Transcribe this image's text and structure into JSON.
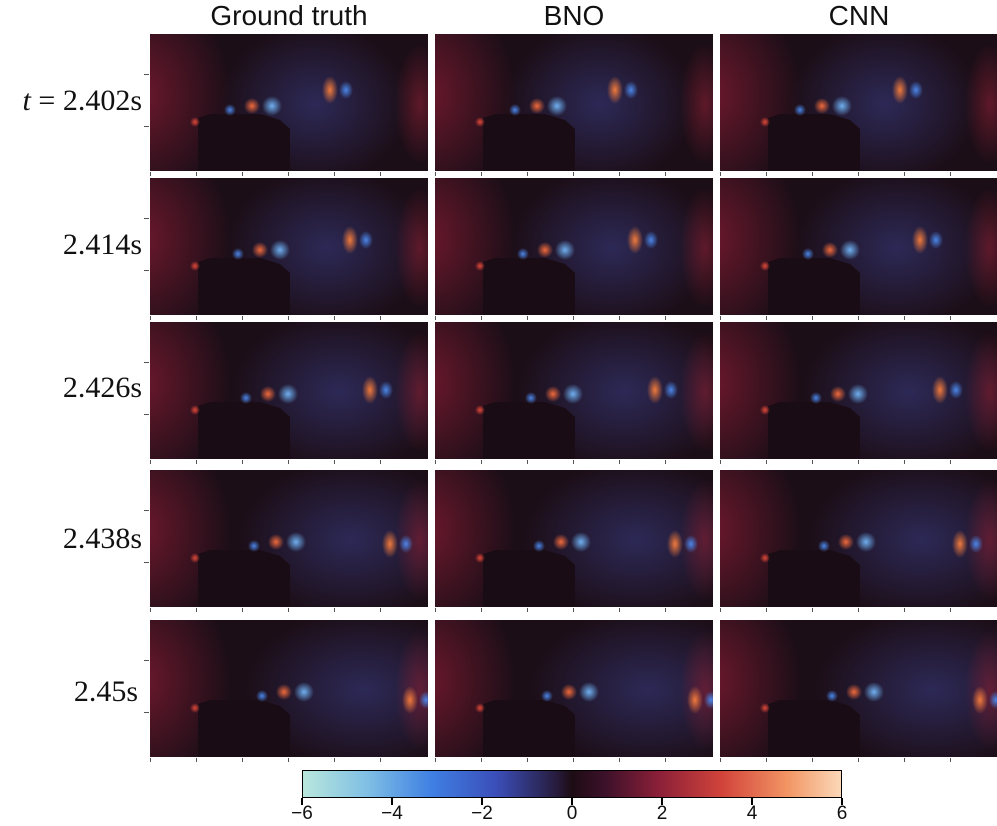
{
  "columns": [
    "Ground truth",
    "BNO",
    "CNN"
  ],
  "rows": [
    {
      "prefix": "t",
      "eq": " = ",
      "label": "2.402s"
    },
    {
      "prefix": "",
      "eq": "",
      "label": "2.414s"
    },
    {
      "prefix": "",
      "eq": "",
      "label": "2.426s"
    },
    {
      "prefix": "",
      "eq": "",
      "label": "2.438s"
    },
    {
      "prefix": "",
      "eq": "",
      "label": "2.45s"
    }
  ],
  "colorbar": {
    "min": -6,
    "max": 6,
    "tick_values": [
      -6,
      -4,
      -2,
      0,
      2,
      4,
      6
    ],
    "tick_labels": [
      "−6",
      "−4",
      "−2",
      "0",
      "2",
      "4",
      "6"
    ],
    "colors": [
      "#b9e7dd",
      "#3f7fe3",
      "#271c3e",
      "#1d0c14",
      "#8a1f38",
      "#d2443b",
      "#fbd8b8"
    ]
  }
}
